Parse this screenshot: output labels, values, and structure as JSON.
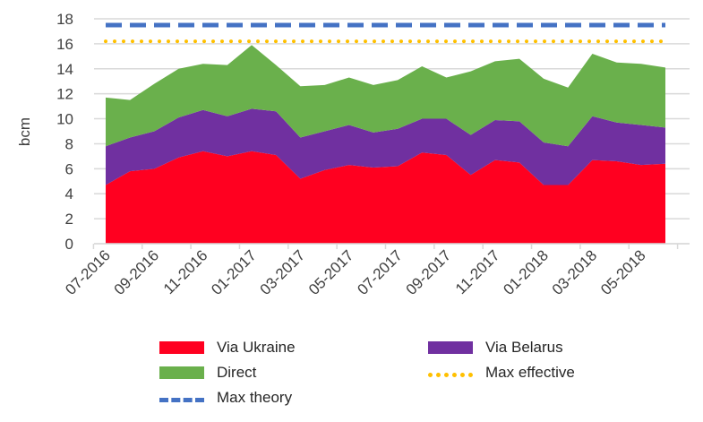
{
  "chart_data": {
    "type": "area",
    "stacked": true,
    "title": "",
    "xlabel": "",
    "ylabel": "bcm",
    "ylim": [
      0,
      18
    ],
    "yticks": [
      0,
      2,
      4,
      6,
      8,
      10,
      12,
      14,
      16,
      18
    ],
    "x": [
      "07-2016",
      "08-2016",
      "09-2016",
      "10-2016",
      "11-2016",
      "12-2016",
      "01-2017",
      "02-2017",
      "03-2017",
      "04-2017",
      "05-2017",
      "06-2017",
      "07-2017",
      "08-2017",
      "09-2017",
      "10-2017",
      "11-2017",
      "12-2017",
      "01-2018",
      "02-2018",
      "03-2018",
      "04-2018",
      "05-2018",
      "06-2018"
    ],
    "xtick_labels": [
      "07-2016",
      "09-2016",
      "11-2016",
      "01-2017",
      "03-2017",
      "05-2017",
      "07-2017",
      "09-2017",
      "11-2017",
      "01-2018",
      "03-2018",
      "05-2018"
    ],
    "series": [
      {
        "name": "Via Ukraine",
        "color": "#ff0020",
        "values": [
          4.7,
          5.8,
          6.0,
          6.9,
          7.4,
          7.0,
          7.4,
          7.1,
          5.2,
          5.9,
          6.3,
          6.1,
          6.2,
          7.3,
          7.1,
          5.5,
          6.7,
          6.5,
          4.7,
          4.7,
          6.7,
          6.6,
          6.3,
          6.4
        ]
      },
      {
        "name": "Via Belarus",
        "color": "#7030a0",
        "values": [
          3.1,
          2.7,
          3.0,
          3.2,
          3.3,
          3.2,
          3.4,
          3.5,
          3.3,
          3.1,
          3.2,
          2.8,
          3.0,
          2.7,
          2.9,
          3.2,
          3.2,
          3.3,
          3.4,
          3.1,
          3.5,
          3.1,
          3.2,
          2.9
        ]
      },
      {
        "name": "Direct",
        "color": "#6ab04c",
        "values": [
          3.9,
          3.0,
          3.8,
          3.9,
          3.7,
          4.1,
          5.1,
          3.7,
          4.1,
          3.7,
          3.8,
          3.8,
          3.9,
          4.2,
          3.3,
          5.1,
          4.7,
          5.0,
          5.1,
          4.7,
          5.0,
          4.8,
          4.9,
          4.8
        ]
      }
    ],
    "lines": [
      {
        "name": "Max effective",
        "color": "#ffc000",
        "style": "dotted",
        "value": 16.2
      },
      {
        "name": "Max theory",
        "color": "#4472c4",
        "style": "dashed",
        "value": 17.5
      }
    ],
    "grid": true,
    "legend_position": "bottom"
  }
}
